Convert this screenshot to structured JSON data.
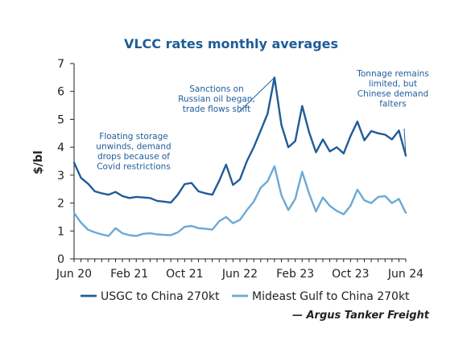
{
  "chart_data": {
    "type": "line",
    "title": "VLCC rates monthly averages",
    "xlabel": "",
    "ylabel": "$/bl",
    "ylim": [
      0,
      7
    ],
    "yticks": [
      "0",
      "1",
      "2",
      "3",
      "4",
      "5",
      "6",
      "7"
    ],
    "x": [
      "Jun 20",
      "Jul 20",
      "Aug 20",
      "Sep 20",
      "Oct 20",
      "Nov 20",
      "Dec 20",
      "Jan 21",
      "Feb 21",
      "Mar 21",
      "Apr 21",
      "May 21",
      "Jun 21",
      "Jul 21",
      "Aug 21",
      "Sep 21",
      "Oct 21",
      "Nov 21",
      "Dec 21",
      "Jan 22",
      "Feb 22",
      "Mar 22",
      "Apr 22",
      "May 22",
      "Jun 22",
      "Jul 22",
      "Aug 22",
      "Sep 22",
      "Oct 22",
      "Nov 22",
      "Dec 22",
      "Jan 23",
      "Feb 23",
      "Mar 23",
      "Apr 23",
      "May 23",
      "Jun 23",
      "Jul 23",
      "Aug 23",
      "Sep 23",
      "Oct 23",
      "Nov 23",
      "Dec 23",
      "Jan 24",
      "Feb 24",
      "Mar 24",
      "Apr 24",
      "May 24",
      "Jun 24"
    ],
    "xtick_labels": [
      "Jun 20",
      "Feb 21",
      "Oct 21",
      "Jun 22",
      "Feb 23",
      "Oct 23",
      "Jun 24"
    ],
    "series": [
      {
        "name": "USGC to China 270kt",
        "color": "#1f5c99",
        "values": [
          3.45,
          2.9,
          2.7,
          2.42,
          2.35,
          2.3,
          2.4,
          2.25,
          2.18,
          2.22,
          2.2,
          2.18,
          2.08,
          2.05,
          2.02,
          2.3,
          2.68,
          2.72,
          2.42,
          2.35,
          2.3,
          2.8,
          3.38,
          2.65,
          2.85,
          3.5,
          4.0,
          4.6,
          5.2,
          6.5,
          4.8,
          4.0,
          4.22,
          5.48,
          4.55,
          3.82,
          4.28,
          3.85,
          4.0,
          3.78,
          4.4,
          4.92,
          4.25,
          4.58,
          4.5,
          4.45,
          4.28,
          4.6,
          3.7
        ]
      },
      {
        "name": "Mideast Gulf to China 270kt",
        "color": "#6aaad6",
        "values": [
          1.65,
          1.3,
          1.05,
          0.95,
          0.88,
          0.82,
          1.1,
          0.92,
          0.85,
          0.82,
          0.9,
          0.92,
          0.88,
          0.86,
          0.85,
          0.95,
          1.15,
          1.18,
          1.1,
          1.08,
          1.05,
          1.35,
          1.5,
          1.28,
          1.4,
          1.75,
          2.05,
          2.55,
          2.78,
          3.32,
          2.28,
          1.75,
          2.15,
          3.12,
          2.35,
          1.7,
          2.2,
          1.9,
          1.72,
          1.6,
          1.9,
          2.48,
          2.1,
          2.0,
          2.22,
          2.25,
          2.0,
          2.15,
          1.65
        ]
      }
    ],
    "annotations": [
      {
        "lines": [
          "Floating storage",
          "unwinds, demand",
          "drops because of",
          "Covid restrictions"
        ],
        "x": "Jun 21",
        "y": 2.2
      },
      {
        "lines": [
          "Sanctions on",
          "Russian oil began,",
          "trade flows shift"
        ],
        "x": "Nov 22",
        "y": 6.5
      },
      {
        "lines": [
          "Tonnage remains",
          "limited, but",
          "Chinese demand",
          "falters"
        ],
        "x": "Jun 24",
        "y": 3.7
      }
    ],
    "legend_position": "bottom",
    "grid": false
  },
  "source": "— Argus Tanker Freight"
}
